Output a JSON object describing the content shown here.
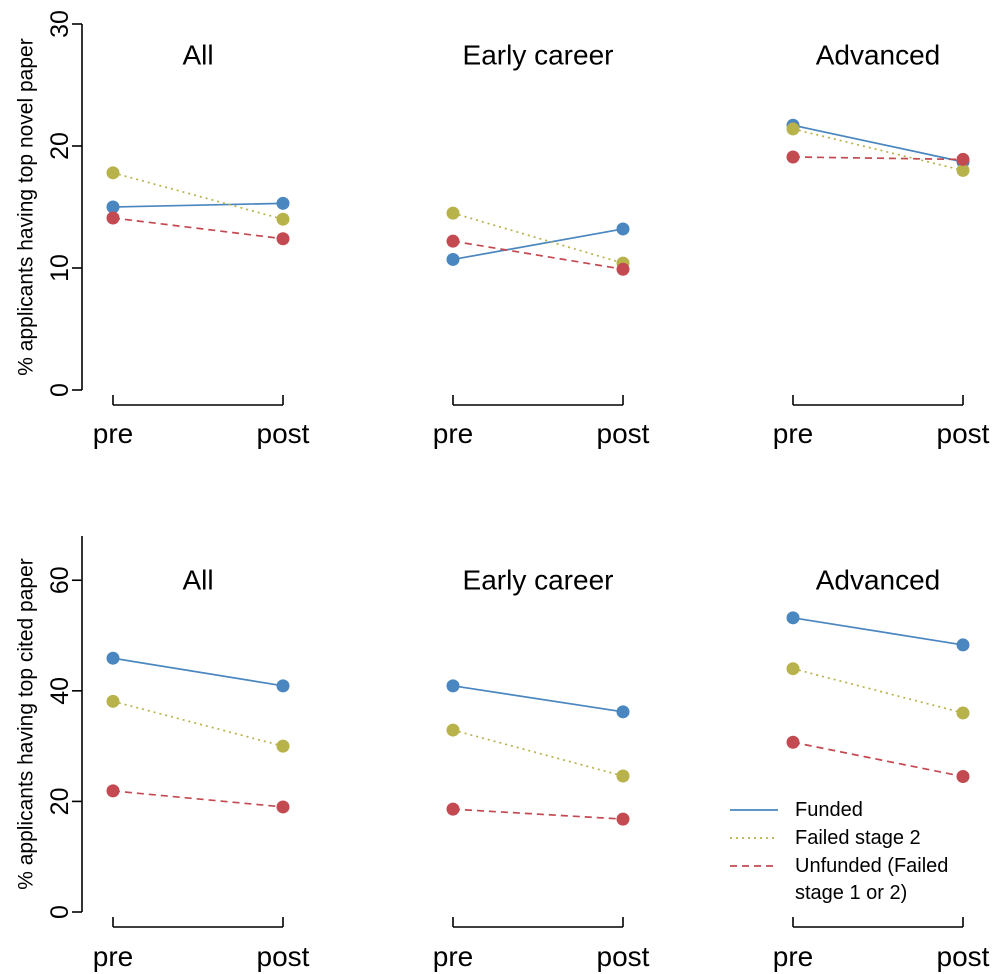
{
  "series_styles": [
    {
      "key": "funded",
      "name": "Funded",
      "color": "#4a86bf",
      "dash": ""
    },
    {
      "key": "failed2",
      "name": "Failed stage 2",
      "color": "#b8b24a",
      "dash": "2,4"
    },
    {
      "key": "unfunded",
      "name": "Unfunded (Failed stage 1 or 2)",
      "legend_lines": [
        "Unfunded (Failed",
        "stage 1 or 2)"
      ],
      "color": "#c44a52",
      "dash": "7,5"
    }
  ],
  "chart_data": [
    {
      "type": "line",
      "ylabel": "% applicants having top novel paper",
      "ylim": [
        0,
        30
      ],
      "yticks": [
        0,
        10,
        20,
        30
      ],
      "categories": [
        "pre",
        "post"
      ],
      "panels": [
        {
          "title": "All",
          "series": [
            {
              "name": "Funded",
              "values": [
                15.0,
                15.3
              ]
            },
            {
              "name": "Failed stage 2",
              "values": [
                17.8,
                14.0
              ]
            },
            {
              "name": "Unfunded (Failed stage 1 or 2)",
              "values": [
                14.1,
                12.4
              ]
            }
          ]
        },
        {
          "title": "Early career",
          "series": [
            {
              "name": "Funded",
              "values": [
                10.7,
                13.2
              ]
            },
            {
              "name": "Failed stage 2",
              "values": [
                14.5,
                10.4
              ]
            },
            {
              "name": "Unfunded (Failed stage 1 or 2)",
              "values": [
                12.2,
                9.9
              ]
            }
          ]
        },
        {
          "title": "Advanced",
          "series": [
            {
              "name": "Funded",
              "values": [
                21.7,
                18.7
              ]
            },
            {
              "name": "Failed stage 2",
              "values": [
                21.4,
                18.0
              ]
            },
            {
              "name": "Unfunded (Failed stage 1 or 2)",
              "values": [
                19.1,
                18.9
              ]
            }
          ]
        }
      ]
    },
    {
      "type": "line",
      "ylabel": "% applicants having top cited paper",
      "ylim": [
        0,
        68
      ],
      "yticks": [
        0,
        20,
        40,
        60
      ],
      "categories": [
        "pre",
        "post"
      ],
      "legend": "bottom-right",
      "panels": [
        {
          "title": "All",
          "series": [
            {
              "name": "Funded",
              "values": [
                45.9,
                40.9
              ]
            },
            {
              "name": "Failed stage 2",
              "values": [
                38.1,
                30.0
              ]
            },
            {
              "name": "Unfunded (Failed stage 1 or 2)",
              "values": [
                21.9,
                19.0
              ]
            }
          ]
        },
        {
          "title": "Early career",
          "series": [
            {
              "name": "Funded",
              "values": [
                40.9,
                36.2
              ]
            },
            {
              "name": "Failed stage 2",
              "values": [
                32.9,
                24.6
              ]
            },
            {
              "name": "Unfunded (Failed stage 1 or 2)",
              "values": [
                18.6,
                16.8
              ]
            }
          ]
        },
        {
          "title": "Advanced",
          "series": [
            {
              "name": "Funded",
              "values": [
                53.2,
                48.3
              ]
            },
            {
              "name": "Failed stage 2",
              "values": [
                44.0,
                36.0
              ]
            },
            {
              "name": "Unfunded (Failed stage 1 or 2)",
              "values": [
                30.7,
                24.5
              ]
            }
          ]
        }
      ]
    }
  ]
}
